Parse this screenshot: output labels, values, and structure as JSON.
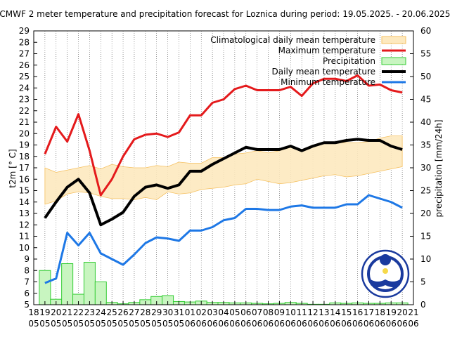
{
  "chart_data": {
    "type": "line",
    "title": "ECMWF 2 meter temperature and precipitation forecast for Loznica during period: 19.05.2025. - 20.06.2025.",
    "ylabel": "t2m [° C]",
    "y2label": "precipitation [mm/24h]",
    "ylim": [
      5,
      29
    ],
    "y2lim": [
      0,
      60
    ],
    "y_ticks": [
      "5",
      "6",
      "7",
      "8",
      "9",
      "10",
      "11",
      "12",
      "13",
      "14",
      "15",
      "16",
      "17",
      "18",
      "19",
      "20",
      "21",
      "22",
      "23",
      "24",
      "25",
      "26",
      "27",
      "28",
      "29"
    ],
    "y2_ticks": [
      "0",
      "5",
      "10",
      "15",
      "20",
      "25",
      "30",
      "35",
      "40",
      "45",
      "50",
      "55",
      "60"
    ],
    "x_day_labels": [
      "18",
      "19",
      "20",
      "21",
      "22",
      "23",
      "24",
      "25",
      "26",
      "27",
      "28",
      "29",
      "30",
      "31",
      "01",
      "02",
      "03",
      "04",
      "05",
      "06",
      "07",
      "08",
      "09",
      "10",
      "11",
      "12",
      "13",
      "14",
      "15",
      "16",
      "17",
      "18",
      "19",
      "20",
      "21"
    ],
    "x_month_labels": [
      "05",
      "05",
      "05",
      "05",
      "05",
      "05",
      "05",
      "05",
      "05",
      "05",
      "05",
      "05",
      "05",
      "05",
      "06",
      "06",
      "06",
      "06",
      "06",
      "06",
      "06",
      "06",
      "06",
      "06",
      "06",
      "06",
      "06",
      "06",
      "06",
      "06",
      "06",
      "06",
      "06",
      "06",
      "06"
    ],
    "grid": "dotted vertical",
    "legend_position": "top-right",
    "legend": [
      {
        "label": "Climatological daily mean temperature",
        "color": "#f5c060",
        "style": "band"
      },
      {
        "label": "Maximum temperature",
        "color": "#e41a1c",
        "style": "line"
      },
      {
        "label": "Precipitation",
        "color": "#33cc33",
        "style": "bar"
      },
      {
        "label": "Daily mean temperature",
        "color": "#000000",
        "style": "line"
      },
      {
        "label": "Minimum temperature",
        "color": "#1e78e6",
        "style": "line"
      }
    ],
    "series": {
      "max": [
        18.2,
        20.6,
        19.3,
        21.7,
        18.5,
        14.6,
        16.0,
        18.0,
        19.5,
        19.9,
        20.0,
        19.7,
        20.1,
        21.6,
        21.6,
        22.7,
        23.0,
        23.9,
        24.2,
        23.8,
        23.8,
        23.8,
        24.1,
        23.3,
        24.4,
        24.8,
        24.8,
        24.6,
        25.1,
        24.2,
        24.3,
        23.8,
        23.6
      ],
      "mean": [
        12.6,
        14.0,
        15.3,
        16.0,
        14.8,
        12.0,
        12.5,
        13.1,
        14.5,
        15.3,
        15.5,
        15.2,
        15.5,
        16.7,
        16.7,
        17.3,
        17.8,
        18.3,
        18.8,
        18.6,
        18.6,
        18.6,
        18.9,
        18.5,
        18.9,
        19.2,
        19.2,
        19.4,
        19.5,
        19.4,
        19.4,
        18.9,
        18.6
      ],
      "min": [
        6.9,
        7.3,
        11.3,
        10.2,
        11.3,
        9.5,
        9.0,
        8.5,
        9.4,
        10.4,
        10.9,
        10.8,
        10.6,
        11.5,
        11.5,
        11.8,
        12.4,
        12.6,
        13.4,
        13.4,
        13.3,
        13.3,
        13.6,
        13.7,
        13.5,
        13.5,
        13.5,
        13.8,
        13.8,
        14.6,
        14.3,
        14.0,
        13.5
      ],
      "clim_upper": [
        17.0,
        16.6,
        16.8,
        17.0,
        17.2,
        16.9,
        17.3,
        17.1,
        17.0,
        17.0,
        17.2,
        17.1,
        17.5,
        17.4,
        17.4,
        17.9,
        17.9,
        18.2,
        18.3,
        18.5,
        18.3,
        18.5,
        18.8,
        18.6,
        19.0,
        19.1,
        19.2,
        19.2,
        19.2,
        19.3,
        19.6,
        19.8,
        19.8
      ],
      "clim_lower": [
        13.8,
        14.1,
        14.7,
        14.9,
        14.8,
        14.5,
        14.3,
        14.3,
        14.2,
        14.4,
        14.2,
        14.9,
        14.7,
        14.8,
        15.1,
        15.2,
        15.3,
        15.5,
        15.6,
        16.0,
        15.8,
        15.6,
        15.7,
        15.9,
        16.1,
        16.3,
        16.4,
        16.2,
        16.3,
        16.5,
        16.7,
        16.9,
        17.1
      ],
      "precip": [
        7.5,
        1.2,
        9.0,
        2.3,
        9.3,
        5.0,
        0.5,
        0.2,
        0.5,
        1.1,
        1.8,
        2.0,
        0.7,
        0.6,
        0.8,
        0.5,
        0.5,
        0.4,
        0.4,
        0.3,
        0.2,
        0.3,
        0.5,
        0.3,
        0.1,
        0.1,
        0.4,
        0.3,
        0.4,
        0.3,
        0.3,
        0.4,
        0.4
      ]
    }
  }
}
